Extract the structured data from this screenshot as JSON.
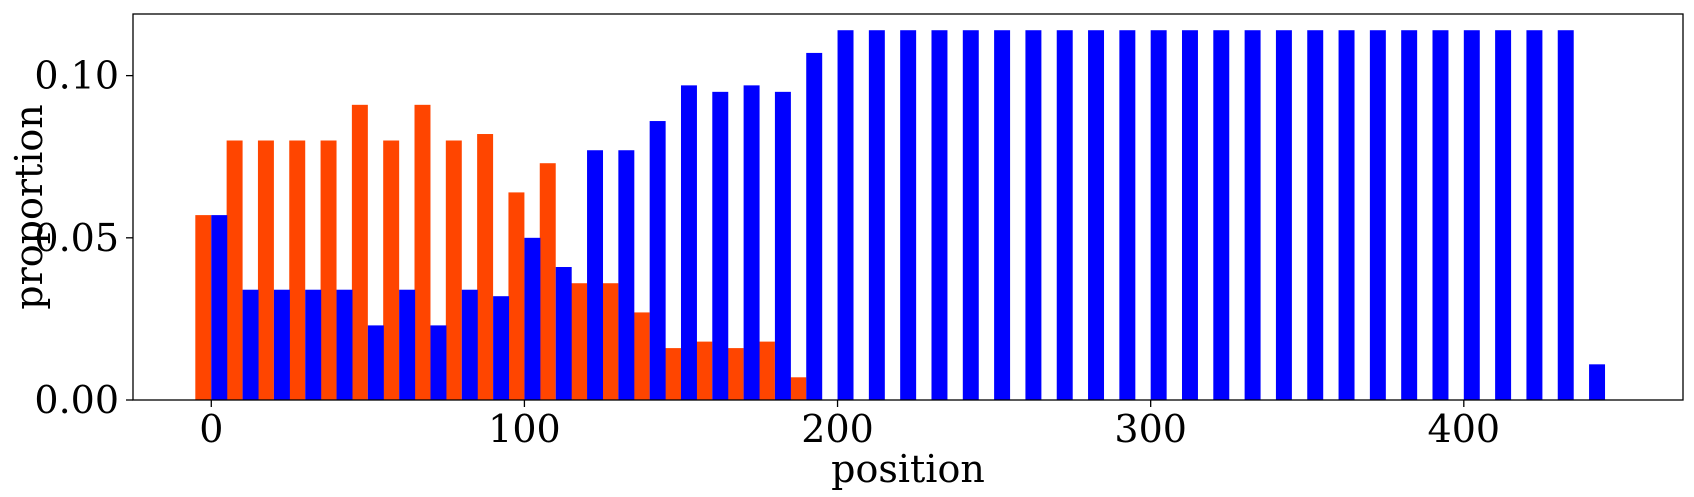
{
  "chart_data": {
    "type": "bar",
    "xlabel": "position",
    "ylabel": "proportion",
    "xlim": [
      -25,
      470
    ],
    "ylim": [
      0,
      0.119
    ],
    "xticks": [
      0,
      100,
      200,
      300,
      400
    ],
    "xtick_labels": [
      "0",
      "100",
      "200",
      "300",
      "400"
    ],
    "yticks": [
      0.0,
      0.05,
      0.1
    ],
    "ytick_labels": [
      "0.00",
      "0.05",
      "0.10"
    ],
    "grid": false,
    "colors": {
      "orange": "#ff4500",
      "blue": "#0000ff"
    },
    "series": [
      {
        "color": "#ff4500",
        "x": [
          0,
          10,
          20,
          30,
          40,
          50,
          60,
          70,
          80,
          90,
          100,
          110,
          120,
          130,
          140,
          150,
          160,
          170,
          180,
          190
        ],
        "values": [
          0.057,
          0.08,
          0.08,
          0.08,
          0.08,
          0.091,
          0.08,
          0.091,
          0.08,
          0.082,
          0.064,
          0.073,
          0.036,
          0.036,
          0.027,
          0.016,
          0.018,
          0.016,
          0.018,
          0.007
        ]
      },
      {
        "color": "#0000ff",
        "x": [
          0,
          10,
          20,
          30,
          40,
          50,
          60,
          70,
          80,
          90,
          100,
          110,
          120,
          130,
          140,
          150,
          160,
          170,
          180,
          190,
          200,
          210,
          220,
          230,
          240,
          250,
          260,
          270,
          280,
          290,
          300,
          310,
          320,
          330,
          340,
          350,
          360,
          370,
          380,
          390,
          400,
          410,
          420,
          430,
          440
        ],
        "values": [
          0.057,
          0.034,
          0.034,
          0.034,
          0.034,
          0.023,
          0.034,
          0.023,
          0.034,
          0.032,
          0.05,
          0.041,
          0.077,
          0.077,
          0.086,
          0.097,
          0.095,
          0.097,
          0.095,
          0.107,
          0.114,
          0.114,
          0.114,
          0.114,
          0.114,
          0.114,
          0.114,
          0.114,
          0.114,
          0.114,
          0.114,
          0.114,
          0.114,
          0.114,
          0.114,
          0.114,
          0.114,
          0.114,
          0.114,
          0.114,
          0.114,
          0.114,
          0.114,
          0.114,
          0.011
        ]
      }
    ]
  }
}
